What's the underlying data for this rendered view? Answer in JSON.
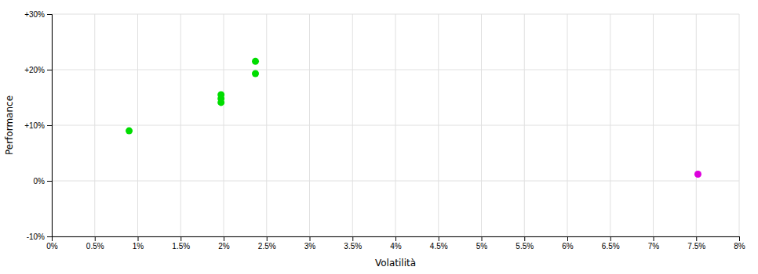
{
  "chart_data": {
    "type": "scatter",
    "xlabel": "Volatilità",
    "ylabel": "Performance",
    "xlim": [
      0.0,
      0.08
    ],
    "ylim": [
      -0.1,
      0.3
    ],
    "xticks": [
      {
        "value": 0.0,
        "label": "0%"
      },
      {
        "value": 0.005,
        "label": "0.5%"
      },
      {
        "value": 0.01,
        "label": "1%"
      },
      {
        "value": 0.015,
        "label": "1.5%"
      },
      {
        "value": 0.02,
        "label": "2%"
      },
      {
        "value": 0.025,
        "label": "2.5%"
      },
      {
        "value": 0.03,
        "label": "3%"
      },
      {
        "value": 0.035,
        "label": "3.5%"
      },
      {
        "value": 0.04,
        "label": "4%"
      },
      {
        "value": 0.045,
        "label": "4.5%"
      },
      {
        "value": 0.05,
        "label": "5%"
      },
      {
        "value": 0.055,
        "label": "5.5%"
      },
      {
        "value": 0.06,
        "label": "6%"
      },
      {
        "value": 0.065,
        "label": "6.5%"
      },
      {
        "value": 0.07,
        "label": "7%"
      },
      {
        "value": 0.075,
        "label": "7.5%"
      },
      {
        "value": 0.08,
        "label": "8%"
      }
    ],
    "yticks": [
      {
        "value": -0.1,
        "label": "-10%"
      },
      {
        "value": 0.0,
        "label": "0%"
      },
      {
        "value": 0.1,
        "label": "+10%"
      },
      {
        "value": 0.2,
        "label": "+20%"
      },
      {
        "value": 0.3,
        "label": "+30%"
      }
    ],
    "grid": true,
    "series": [
      {
        "color": "#00dd00",
        "x": [
          0.009,
          0.0197,
          0.0197,
          0.0197,
          0.0237,
          0.0237
        ],
        "values": [
          0.09,
          0.155,
          0.148,
          0.141,
          0.215,
          0.193
        ]
      },
      {
        "color": "#dd00dd",
        "x": [
          0.0752
        ],
        "values": [
          0.012
        ]
      }
    ]
  }
}
